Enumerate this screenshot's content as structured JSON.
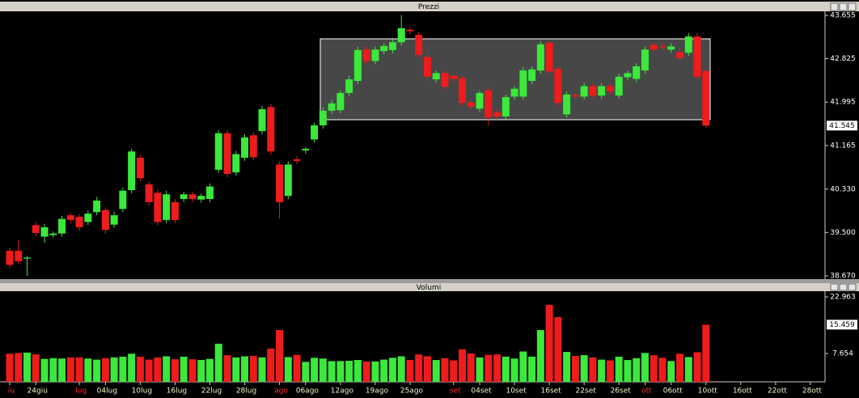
{
  "chart_data": [
    {
      "type": "candlestick",
      "title": "Prezzi",
      "open": [
        39.15,
        39.15,
        39.0,
        39.64,
        39.42,
        39.45,
        39.48,
        39.83,
        39.8,
        39.7,
        39.89,
        39.93,
        39.65,
        39.95,
        40.31,
        40.93,
        40.42,
        40.26,
        39.74,
        40.08,
        40.14,
        40.23,
        40.13,
        40.14,
        40.7,
        41.4,
        40.65,
        40.93,
        41.36,
        41.44,
        41.9,
        40.8,
        40.2,
        40.9,
        41.07,
        41.28,
        41.55,
        41.83,
        41.84,
        42.17,
        42.4,
        43.0,
        42.78,
        42.97,
        42.99,
        43.14,
        43.38,
        43.28,
        42.86,
        42.43,
        42.55,
        42.5,
        42.45,
        41.99,
        41.87,
        42.22,
        41.8,
        41.72,
        42.1,
        42.1,
        42.4,
        42.6,
        43.13,
        42.63,
        41.76,
        42.13,
        42.1,
        42.3,
        42.12,
        42.3,
        42.12,
        42.47,
        42.44,
        42.6,
        43.09,
        43.06,
        43.0,
        42.95,
        42.94,
        43.25,
        42.59
      ],
      "high": [
        39.2,
        39.35,
        39.05,
        39.7,
        39.66,
        39.52,
        39.82,
        39.88,
        39.85,
        39.92,
        40.18,
        39.98,
        39.9,
        40.36,
        41.1,
        40.98,
        40.48,
        40.32,
        40.3,
        40.14,
        40.28,
        40.28,
        40.25,
        40.44,
        41.46,
        41.46,
        41.06,
        41.38,
        41.42,
        41.92,
        41.96,
        40.86,
        40.86,
        40.96,
        41.14,
        41.6,
        41.9,
        42.04,
        42.22,
        42.5,
        43.05,
        43.06,
        43.06,
        43.12,
        43.2,
        43.66,
        43.42,
        43.34,
        42.92,
        42.6,
        42.6,
        42.54,
        42.5,
        42.04,
        42.22,
        42.28,
        41.86,
        42.14,
        42.3,
        42.66,
        42.68,
        43.16,
        43.18,
        42.68,
        42.2,
        42.18,
        42.36,
        42.36,
        42.36,
        42.36,
        42.54,
        42.6,
        42.74,
        43.06,
        43.14,
        43.12,
        43.12,
        43.02,
        43.32,
        43.32,
        42.64
      ],
      "low": [
        38.82,
        38.9,
        38.67,
        39.43,
        39.3,
        39.4,
        39.42,
        39.68,
        39.54,
        39.64,
        39.83,
        39.48,
        39.59,
        39.89,
        40.25,
        40.48,
        40.02,
        39.64,
        39.68,
        39.68,
        40.08,
        40.08,
        40.07,
        40.08,
        40.64,
        40.56,
        40.59,
        40.87,
        40.88,
        41.38,
        40.99,
        39.77,
        40.14,
        40.81,
        41.01,
        41.22,
        41.49,
        41.77,
        41.78,
        42.11,
        42.34,
        42.72,
        42.72,
        42.91,
        42.93,
        43.08,
        43.29,
        42.84,
        42.42,
        42.37,
        42.23,
        42.38,
        41.92,
        41.85,
        41.81,
        41.55,
        41.66,
        41.66,
        42.04,
        42.04,
        42.34,
        42.54,
        42.52,
        41.92,
        41.7,
        42.04,
        42.04,
        42.06,
        42.06,
        42.14,
        42.06,
        42.41,
        42.38,
        42.54,
        42.94,
        42.98,
        42.94,
        42.78,
        42.88,
        42.42,
        41.5
      ],
      "close": [
        38.88,
        38.95,
        39.02,
        39.49,
        39.6,
        39.48,
        39.76,
        39.74,
        39.6,
        39.86,
        40.11,
        39.55,
        39.83,
        40.3,
        41.05,
        40.54,
        40.08,
        39.7,
        40.23,
        39.74,
        40.23,
        40.14,
        40.2,
        40.38,
        41.4,
        40.62,
        41.0,
        41.32,
        40.94,
        41.86,
        41.05,
        40.08,
        40.8,
        40.87,
        41.1,
        41.55,
        41.83,
        41.97,
        42.17,
        42.43,
        42.99,
        42.78,
        43.0,
        43.07,
        43.14,
        43.41,
        43.35,
        42.9,
        42.48,
        42.55,
        42.29,
        42.44,
        41.98,
        41.91,
        42.17,
        41.7,
        41.72,
        42.09,
        42.25,
        42.6,
        42.62,
        43.1,
        42.58,
        41.98,
        42.14,
        42.1,
        42.3,
        42.12,
        42.3,
        42.2,
        42.48,
        42.55,
        42.68,
        43.0,
        43.0,
        43.04,
        43.06,
        42.84,
        43.25,
        42.48,
        41.545
      ],
      "up_color": "#3be83b",
      "down_color": "#ee1c1c",
      "last_value": 41.545,
      "xlim": [
        -1.115,
        93.68
      ],
      "ylim": [
        38.608,
        43.732
      ],
      "yticks": [
        43.655,
        42.825,
        41.995,
        41.165,
        {
          "value": 40.33,
          "label": "40.330"
        },
        {
          "value": 39.5,
          "label": "39.500"
        },
        {
          "value": 38.67,
          "label": "38.670"
        }
      ]
    },
    {
      "type": "bar",
      "title": "Volumi",
      "values": [
        7.6,
        7.8,
        7.9,
        7.4,
        6.2,
        6.4,
        6.3,
        6.6,
        6.6,
        6.3,
        6.0,
        6.4,
        6.6,
        6.8,
        7.6,
        6.8,
        6.0,
        6.6,
        6.9,
        6.1,
        6.8,
        6.1,
        5.9,
        6.2,
        10.3,
        7.2,
        6.6,
        6.9,
        7.0,
        6.6,
        9.0,
        14.0,
        6.7,
        7.3,
        5.4,
        6.5,
        6.3,
        5.6,
        5.6,
        5.7,
        5.9,
        5.5,
        5.5,
        6.0,
        6.5,
        6.9,
        5.9,
        7.4,
        6.9,
        5.9,
        6.4,
        5.8,
        8.8,
        7.7,
        6.6,
        7.3,
        7.4,
        6.8,
        6.3,
        8.2,
        6.8,
        14.0,
        20.8,
        17.5,
        8.1,
        7.0,
        7.2,
        6.6,
        6.0,
        5.8,
        6.8,
        5.9,
        6.4,
        7.8,
        7.2,
        6.5,
        5.6,
        7.6,
        6.7,
        8.0,
        15.459
      ],
      "last_value": 15.459,
      "xlim": [
        -1.115,
        93.68
      ],
      "ylim": [
        0,
        24.5
      ],
      "yticks": [
        22.963,
        7.654
      ],
      "xticks": [
        {
          "value": 0,
          "label": "iu"
        },
        {
          "value": 3,
          "label": "24giu"
        },
        {
          "value": 8,
          "label": "lug"
        },
        {
          "value": 11,
          "label": "04lug"
        },
        {
          "value": 15,
          "label": "10lug"
        },
        {
          "value": 19,
          "label": "16lug"
        },
        {
          "value": 23,
          "label": "22lug"
        },
        {
          "value": 27,
          "label": "28lug"
        },
        {
          "value": 31,
          "label": "ago"
        },
        {
          "value": 34,
          "label": "06ago"
        },
        {
          "value": 38,
          "label": "12ago"
        },
        {
          "value": 42,
          "label": "19ago"
        },
        {
          "value": 46,
          "label": "25ago"
        },
        {
          "value": 51,
          "label": "set"
        },
        {
          "value": 54,
          "label": "04set"
        },
        {
          "value": 58,
          "label": "10set"
        },
        {
          "value": 62,
          "label": "16set"
        },
        {
          "value": 66,
          "label": "22set"
        },
        {
          "value": 70,
          "label": "26set"
        },
        {
          "value": 73,
          "label": "ott"
        },
        {
          "value": 76,
          "label": "06ott"
        },
        {
          "value": 80,
          "label": "10ott"
        },
        {
          "value": 84,
          "label": "16ott"
        },
        {
          "value": 88,
          "label": "22ott"
        },
        {
          "value": 92,
          "label": "28ott"
        }
      ]
    }
  ]
}
